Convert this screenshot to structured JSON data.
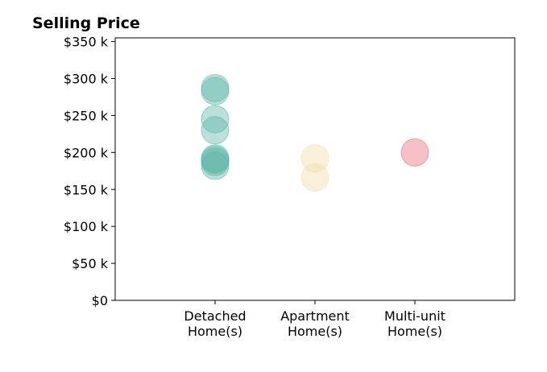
{
  "chart_data": {
    "type": "scatter",
    "title": "Selling Price",
    "xlabel": "",
    "ylabel": "",
    "categories": [
      [
        "Detached",
        "Home(s)"
      ],
      [
        "Apartment",
        "Home(s)"
      ],
      [
        "Multi-unit",
        "Home(s)"
      ]
    ],
    "ylim": [
      0,
      355000
    ],
    "yticks": [
      0,
      50000,
      100000,
      150000,
      200000,
      250000,
      300000,
      350000
    ],
    "ytick_labels": [
      "$0",
      "$50 k",
      "$100 k",
      "$150 k",
      "$200 k",
      "$250 k",
      "$300 k",
      "$350 k"
    ],
    "grid": false,
    "series": [
      {
        "category": 0,
        "color": "#5ab4a7",
        "values": [
          287000,
          283000,
          245000,
          230000,
          192000,
          190000,
          187000,
          182000
        ]
      },
      {
        "category": 1,
        "color": "#f3dba8",
        "values": [
          192000,
          166000
        ]
      },
      {
        "category": 2,
        "color": "#e86a78",
        "values": [
          200000
        ]
      }
    ]
  }
}
